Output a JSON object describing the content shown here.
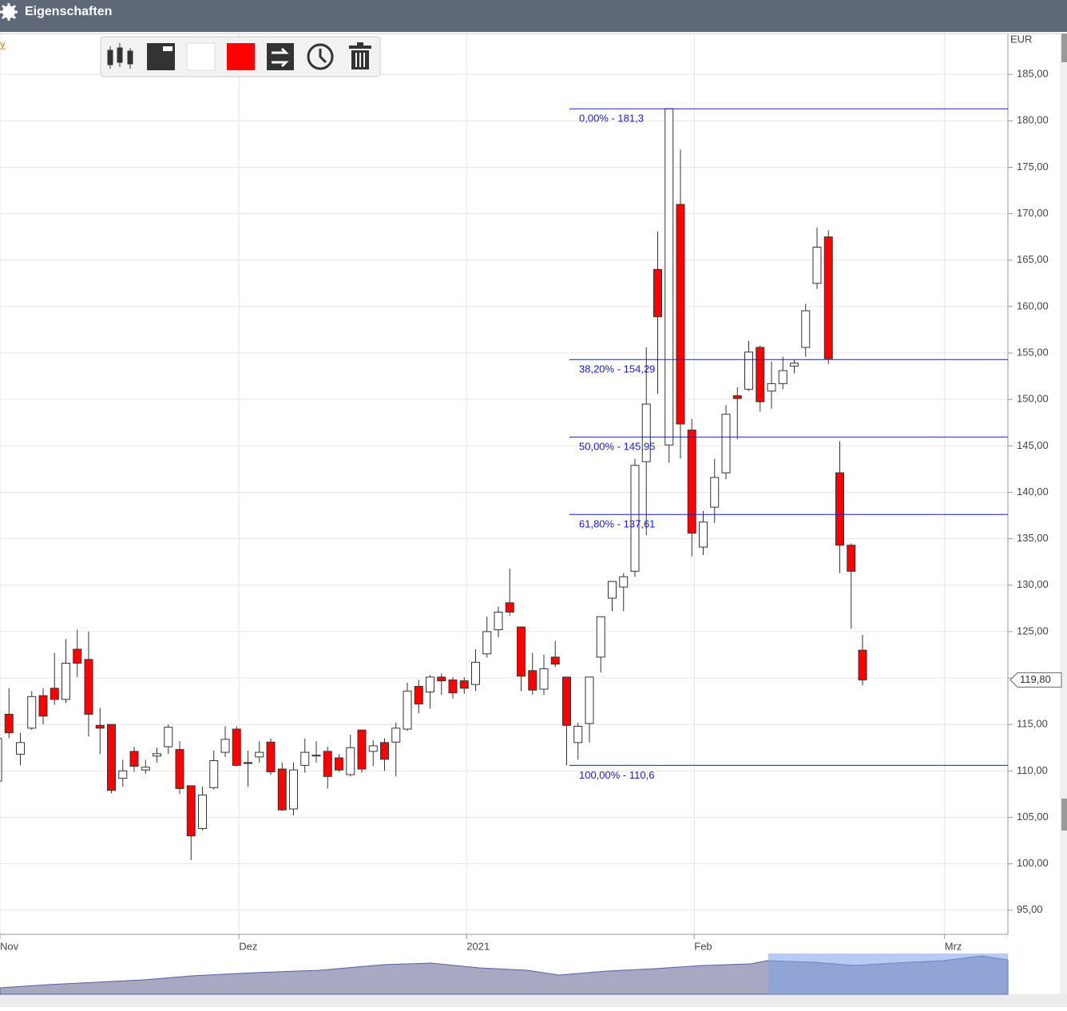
{
  "header": {
    "title": "Eigenschaften"
  },
  "chart_link": "y",
  "chart_data": {
    "type": "candlestick",
    "y_axis_title": "EUR",
    "categories": [
      "Nov",
      null,
      null,
      null,
      null,
      null,
      null,
      null,
      null,
      null,
      null,
      null,
      null,
      null,
      null,
      null,
      null,
      null,
      null,
      null,
      null,
      "Dez",
      null,
      null,
      null,
      null,
      null,
      null,
      null,
      null,
      null,
      null,
      null,
      null,
      null,
      null,
      null,
      null,
      null,
      null,
      null,
      "2021",
      null,
      null,
      null,
      null,
      null,
      null,
      null,
      null,
      null,
      null,
      null,
      null,
      null,
      null,
      null,
      null,
      null,
      null,
      null,
      "Feb",
      null,
      null,
      null,
      null,
      null,
      null,
      null,
      null,
      null,
      null,
      null,
      null,
      null,
      null,
      null,
      null,
      null,
      null,
      null,
      null,
      null,
      "Mrz",
      null,
      null,
      null,
      null,
      null
    ],
    "open": [
      108.9,
      116.1,
      111.8,
      114.6,
      118.1,
      118.9,
      117.7,
      123.1,
      122.0,
      114.9,
      115.0,
      109.2,
      112.1,
      110.1,
      111.6,
      112.6,
      112.3,
      108.4,
      103.8,
      108.2,
      112.0,
      114.5,
      110.9,
      111.5,
      113.1,
      110.2,
      105.9,
      110.6,
      111.6,
      112.1,
      111.4,
      109.6,
      114.4,
      112.1,
      113.05,
      113.1,
      114.5,
      119.1,
      118.5,
      120.1,
      119.8,
      119.7,
      119.3,
      122.6,
      125.2,
      128.1,
      125.5,
      120.8,
      118.8,
      122.25,
      120.1,
      113.05,
      115.1,
      122.25,
      128.6,
      129.8,
      131.5,
      143.3,
      164.0,
      145.1,
      171.0,
      146.7,
      134.1,
      138.4,
      142.1,
      150.4,
      151.1,
      155.6,
      150.9,
      151.7,
      153.6,
      155.6,
      162.5,
      167.5,
      142.1,
      134.3,
      123.0,
      null,
      null,
      null,
      null,
      null,
      null,
      null,
      null,
      null,
      null,
      null,
      null
    ],
    "high": [
      114.0,
      118.9,
      114.1,
      118.6,
      118.9,
      122.7,
      124.2,
      125.2,
      125.0,
      116.8,
      115.0,
      111.2,
      112.6,
      111.2,
      112.5,
      115.0,
      113.2,
      108.4,
      108.3,
      112.2,
      114.8,
      114.8,
      112.2,
      113.2,
      113.5,
      110.9,
      110.9,
      113.5,
      113.2,
      112.6,
      111.8,
      113.9,
      114.4,
      113.3,
      113.5,
      115.2,
      119.5,
      119.8,
      120.3,
      120.5,
      120.1,
      120.1,
      123.1,
      126.6,
      127.7,
      131.8,
      125.5,
      122.7,
      122.5,
      124.0,
      120.1,
      115.2,
      120.1,
      126.6,
      130.4,
      131.3,
      143.6,
      155.6,
      168.1,
      181.3,
      176.9,
      147.9,
      138.0,
      143.6,
      149.4,
      151.3,
      156.3,
      155.8,
      154.1,
      154.6,
      154.3,
      160.3,
      168.5,
      168.2,
      145.5,
      134.5,
      124.65,
      null,
      null,
      null,
      null,
      null,
      null,
      null,
      null,
      null,
      null,
      null,
      null
    ],
    "low": [
      108.5,
      113.5,
      110.6,
      114.4,
      115.0,
      117.1,
      117.3,
      120.1,
      113.7,
      111.8,
      107.6,
      108.3,
      109.9,
      109.7,
      110.9,
      111.8,
      107.5,
      100.4,
      103.6,
      108.0,
      111.5,
      110.5,
      108.3,
      110.9,
      109.6,
      105.7,
      105.2,
      109.8,
      110.9,
      108.1,
      109.9,
      109.4,
      109.8,
      110.5,
      110.0,
      109.4,
      114.3,
      116.2,
      116.7,
      118.2,
      117.8,
      118.3,
      118.6,
      122.2,
      124.4,
      126.7,
      118.6,
      118.2,
      118.2,
      121.2,
      110.6,
      111.2,
      113.05,
      120.6,
      127.2,
      127.2,
      130.9,
      135.4,
      150.6,
      143.2,
      143.65,
      133.1,
      133.25,
      136.7,
      141.4,
      145.7,
      150.9,
      148.7,
      149.0,
      151.1,
      152.8,
      154.6,
      161.9,
      153.8,
      131.3,
      125.3,
      119.2,
      null,
      null,
      null,
      null,
      null,
      null,
      null,
      null,
      null,
      null,
      null,
      null
    ],
    "close": [
      113.5,
      114.1,
      113.05,
      118.0,
      115.9,
      117.7,
      121.6,
      121.6,
      116.1,
      114.6,
      107.9,
      110.0,
      110.5,
      110.4,
      111.85,
      114.7,
      108.1,
      103.0,
      107.4,
      111.1,
      113.4,
      110.6,
      110.8,
      112.0,
      109.9,
      105.8,
      110.1,
      112.0,
      111.7,
      109.4,
      110.1,
      112.5,
      110.2,
      112.7,
      111.25,
      114.6,
      118.6,
      117.2,
      120.1,
      119.7,
      118.4,
      118.9,
      121.7,
      125.0,
      127.1,
      127.1,
      120.2,
      118.7,
      121.0,
      121.5,
      114.9,
      114.8,
      120.1,
      126.6,
      130.4,
      130.9,
      142.9,
      149.5,
      158.9,
      181.3,
      147.35,
      135.6,
      136.8,
      141.6,
      148.4,
      150.1,
      155.1,
      149.75,
      151.7,
      153.1,
      153.9,
      159.55,
      166.4,
      154.4,
      134.3,
      131.5,
      119.8,
      null,
      null,
      null,
      null,
      null,
      null,
      null,
      null,
      null,
      null,
      null,
      null
    ],
    "up_color": "#ffffff",
    "down_color": "#ff0000",
    "ylim": [
      92.4,
      189.4
    ],
    "yticks": [
      {
        "value": 95,
        "label": "95,00"
      },
      {
        "value": 100,
        "label": "100,00"
      },
      {
        "value": 105,
        "label": "105,00"
      },
      {
        "value": 110,
        "label": "110,00"
      },
      {
        "value": 115,
        "label": "115,00"
      },
      {
        "value": 120,
        "label": "120,00"
      },
      {
        "value": 125,
        "label": "125,00"
      },
      {
        "value": 130,
        "label": "130,00"
      },
      {
        "value": 135,
        "label": "135,00"
      },
      {
        "value": 140,
        "label": "140,00"
      },
      {
        "value": 145,
        "label": "145,00"
      },
      {
        "value": 150,
        "label": "150,00"
      },
      {
        "value": 155,
        "label": "155,00"
      },
      {
        "value": 160,
        "label": "160,00"
      },
      {
        "value": 165,
        "label": "165,00"
      },
      {
        "value": 170,
        "label": "170,00"
      },
      {
        "value": 175,
        "label": "175,00"
      },
      {
        "value": 180,
        "label": "180,00"
      },
      {
        "value": 185,
        "label": "185,00"
      }
    ],
    "grid": true,
    "fib_color": "#1a1acc",
    "fib_levels": [
      {
        "value": 181.3,
        "label": "0,00% - 181,3"
      },
      {
        "value": 154.29,
        "label": "38,20% - 154,29"
      },
      {
        "value": 145.95,
        "label": "50,00% - 145,95"
      },
      {
        "value": 137.61,
        "label": "61,80% - 137,61"
      },
      {
        "value": 110.6,
        "label": "100,00% - 110,6"
      }
    ],
    "last_price": {
      "value": 119.8,
      "label": "119,80"
    }
  }
}
